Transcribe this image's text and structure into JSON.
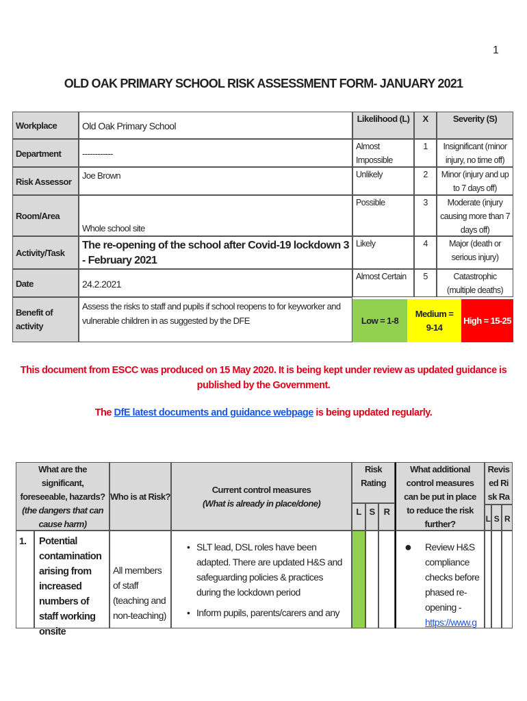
{
  "page_number": "1",
  "title": "OLD OAK PRIMARY SCHOOL RISK ASSESSMENT FORM- JANUARY 2021",
  "info": {
    "workplace_label": "Workplace",
    "workplace": "Old Oak Primary School",
    "department_label": "Department",
    "department": "------------",
    "assessor_label": "Risk Assessor",
    "assessor": "Joe Brown",
    "room_label": "Room/Area",
    "room": "Whole school site",
    "activity_label": "Activity/Task",
    "activity": "The re-opening of the school after Covid-19 lockdown 3 - February 2021",
    "date_label": "Date",
    "date": "24.2.2021",
    "benefit_label": "Benefit of activity",
    "benefit": "Assess the risks to staff and pupils if school reopens to for keyworker and vulnerable children in as suggested by the DFE"
  },
  "matrix": {
    "likelihood_header": "Likelihood (L)",
    "x_header": "X",
    "severity_header": "Severity (S)",
    "rows": [
      {
        "likelihood": "Almost Impossible",
        "n": "1",
        "severity": "Insignificant (minor injury, no time off)"
      },
      {
        "likelihood": "Unlikely",
        "n": "2",
        "severity": "Minor (injury and up to 7 days off)"
      },
      {
        "likelihood": "Possible",
        "n": "3",
        "severity": "Moderate (injury causing more than 7 days off)"
      },
      {
        "likelihood": "Likely",
        "n": "4",
        "severity": "Major (death or serious injury)"
      },
      {
        "likelihood": "Almost Certain",
        "n": "5",
        "severity": "Catastrophic (multiple deaths)"
      }
    ],
    "low": "Low = 1-8",
    "medium": "Medium = 9-14",
    "high": "High = 15-25",
    "colors": {
      "low": "#92d050",
      "medium": "#ffff00",
      "high": "#ff0000"
    }
  },
  "notice": "This document from ESCC was produced on 15 May 2020. It is being kept under review as updated guidance is published by the Government.",
  "guidance": {
    "prefix": "The ",
    "link": "DfE latest documents and guidance webpage",
    "suffix": " is being updated regularly."
  },
  "assessment": {
    "headers": {
      "hazards": "What are the significant, foreseeable, hazards?",
      "hazards_sub": "(the dangers that can cause harm)",
      "who": "Who is at Risk?",
      "current": "Current control measures",
      "current_sub": "(What is already in place/done)",
      "risk": "Risk Rating",
      "additional": "What additional control measures can be put in place to reduce the risk further?",
      "revised": "Revised Risk Rating",
      "l": "L",
      "s": "S",
      "r": "R"
    },
    "rows": [
      {
        "num": "1.",
        "hazard": "Potential contamination arising from increased numbers of staff working onsite",
        "who": "All members of staff (teaching and non-teaching)",
        "current": [
          "SLT lead, DSL roles have been adapted. There are updated H&S and safeguarding policies & practices during the lockdown period",
          "Inform pupils, parents/carers and any"
        ],
        "additional": "Review H&S compliance checks before phased re-opening -",
        "additional_link": "https://www.g",
        "risk_color": "#92d050"
      }
    ]
  }
}
